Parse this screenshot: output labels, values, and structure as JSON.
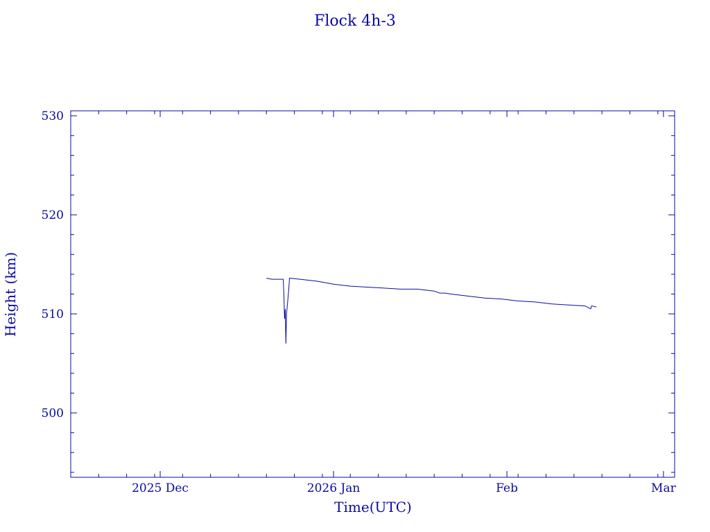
{
  "chart_data": {
    "type": "line",
    "title": "Flock 4h-3",
    "xlabel": "Time(UTC)",
    "ylabel": "Height (km)",
    "ylim": [
      493.5,
      530.5
    ],
    "xlim": [
      "2025-11-15",
      "2026-03-03"
    ],
    "yticks": [
      500,
      510,
      520,
      530
    ],
    "xticks": [
      {
        "label": "2025 Dec",
        "date": "2025-12-01"
      },
      {
        "label": "2026 Jan",
        "date": "2026-01-01"
      },
      {
        "label": "Feb",
        "date": "2026-02-01"
      },
      {
        "label": "Mar",
        "date": "2026-03-01"
      }
    ],
    "grid": false,
    "color": "#0a0aa0",
    "series": [
      {
        "x": [
          "2025-12-20",
          "2025-12-21",
          "2025-12-22",
          "2025-12-23",
          "2025-12-23",
          "2025-12-23",
          "2025-12-23",
          "2025-12-23",
          "2025-12-23",
          "2025-12-24",
          "2025-12-24",
          "2025-12-24",
          "2025-12-26",
          "2025-12-29",
          "2026-01-01",
          "2026-01-04",
          "2026-01-07",
          "2026-01-10",
          "2026-01-13",
          "2026-01-16",
          "2026-01-19",
          "2026-01-20",
          "2026-01-21",
          "2026-01-22",
          "2026-01-25",
          "2026-01-28",
          "2026-01-31",
          "2026-02-03",
          "2026-02-06",
          "2026-02-09",
          "2026-02-12",
          "2026-02-15",
          "2026-02-16",
          "2026-02-16",
          "2026-02-16",
          "2026-02-17"
        ],
        "y": [
          513.6,
          513.5,
          513.5,
          513.5,
          512.0,
          509.5,
          510.5,
          507.0,
          510.0,
          512.5,
          513.6,
          513.6,
          513.5,
          513.3,
          513.0,
          512.8,
          512.7,
          512.6,
          512.5,
          512.5,
          512.3,
          512.1,
          512.1,
          512.0,
          511.8,
          511.6,
          511.5,
          511.3,
          511.2,
          511.0,
          510.9,
          510.8,
          510.5,
          510.8,
          510.8,
          510.7
        ]
      }
    ]
  }
}
